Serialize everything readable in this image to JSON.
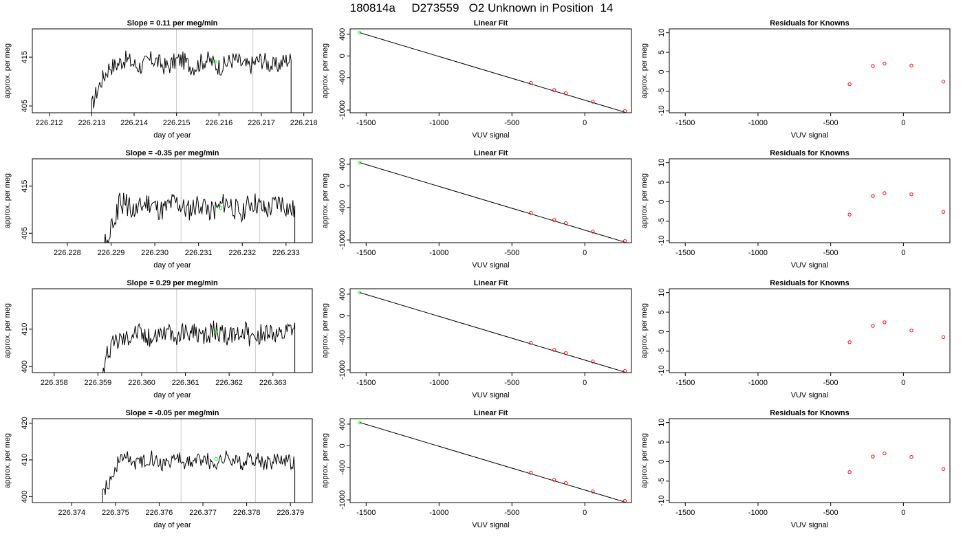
{
  "figure_title": "180814a     D273559   O2 Unknown in Position  14",
  "colors": {
    "trace": "#000000",
    "known_point": "#ff0000",
    "unknown_point": "#00ff00",
    "window_line": "#c8c8c8",
    "frame": "#000000"
  },
  "chart_data": [
    {
      "type": "line",
      "panel": "time-series-1",
      "title": "Slope =  0.11  per meg/min",
      "xlabel": "day of year",
      "ylabel": "approx. per meg",
      "xlim": [
        226.2116,
        226.2182
      ],
      "ylim": [
        403.6,
        420.8
      ],
      "xticks": [
        "226.212",
        "226.213",
        "226.214",
        "226.215",
        "226.216",
        "226.217",
        "226.218"
      ],
      "yticks": [
        "405",
        "415"
      ],
      "window_lines": [
        226.215,
        226.2168
      ],
      "series_start": 226.213,
      "series_end": 226.2177,
      "series_mean": 413.8,
      "series_amplitude": 1.9,
      "unknown_point": {
        "x": 226.2159,
        "y": 414.1
      }
    },
    {
      "type": "scatter",
      "panel": "linear-fit-1",
      "title": "Linear Fit",
      "xlabel": "VUV signal",
      "ylabel": "approx. per meg",
      "xlim": [
        -1610,
        320
      ],
      "ylim": [
        -1050,
        500
      ],
      "xticks": [
        -1500,
        -1000,
        -500,
        0
      ],
      "yticks": [
        400,
        0,
        -400,
        -1000
      ],
      "fit_line": {
        "x": [
          -1545,
          275
        ],
        "y": [
          430,
          -1040
        ]
      },
      "knowns": [
        {
          "x": -370,
          "y": -500
        },
        {
          "x": -210,
          "y": -630
        },
        {
          "x": -130,
          "y": -690
        },
        {
          "x": 55,
          "y": -845
        },
        {
          "x": 275,
          "y": -1020
        }
      ],
      "unknown": {
        "x": -1545,
        "y": 430
      }
    },
    {
      "type": "scatter",
      "panel": "residuals-1",
      "title": "Residuals for Knowns",
      "xlabel": "VUV signal",
      "ylabel": "approx. per meg",
      "xlim": [
        -1610,
        320
      ],
      "ylim": [
        -10.5,
        11
      ],
      "xticks": [
        -1500,
        -1000,
        -500,
        0
      ],
      "yticks": [
        10,
        5,
        0,
        -5,
        -10
      ],
      "points": [
        {
          "x": -370,
          "y": -3.2
        },
        {
          "x": -210,
          "y": 1.5
        },
        {
          "x": -130,
          "y": 2.1
        },
        {
          "x": 55,
          "y": 1.6
        },
        {
          "x": 275,
          "y": -2.5
        }
      ]
    },
    {
      "type": "line",
      "panel": "time-series-2",
      "title": "Slope =  -0.35  per meg/min",
      "xlabel": "day of year",
      "ylabel": "approx. per meg",
      "xlim": [
        226.2272,
        226.2336
      ],
      "ylim": [
        403,
        420.8
      ],
      "xticks": [
        "226.228",
        "226.229",
        "226.230",
        "226.231",
        "226.232",
        "226.233"
      ],
      "yticks": [
        "405",
        "415"
      ],
      "window_lines": [
        226.2306,
        226.2324
      ],
      "series_start": 226.2288,
      "series_end": 226.2332,
      "series_mean": 410.6,
      "series_amplitude": 2.4,
      "unknown_point": {
        "x": 226.2315,
        "y": 410.4
      }
    },
    {
      "type": "scatter",
      "panel": "linear-fit-2",
      "title": "Linear Fit",
      "xlabel": "VUV signal",
      "ylabel": "approx. per meg",
      "xlim": [
        -1610,
        320
      ],
      "ylim": [
        -1050,
        500
      ],
      "xticks": [
        -1500,
        -1000,
        -500,
        0
      ],
      "yticks": [
        400,
        0,
        -400,
        -1000
      ],
      "fit_line": {
        "x": [
          -1545,
          275
        ],
        "y": [
          430,
          -1040
        ]
      },
      "knowns": [
        {
          "x": -370,
          "y": -500
        },
        {
          "x": -210,
          "y": -630
        },
        {
          "x": -130,
          "y": -690
        },
        {
          "x": 55,
          "y": -845
        },
        {
          "x": 275,
          "y": -1020
        }
      ],
      "unknown": {
        "x": -1545,
        "y": 430
      }
    },
    {
      "type": "scatter",
      "panel": "residuals-2",
      "title": "Residuals for Knowns",
      "xlabel": "VUV signal",
      "ylabel": "approx. per meg",
      "xlim": [
        -1610,
        320
      ],
      "ylim": [
        -10.5,
        11
      ],
      "xticks": [
        -1500,
        -1000,
        -500,
        0
      ],
      "yticks": [
        10,
        5,
        0,
        -5,
        -10
      ],
      "points": [
        {
          "x": -370,
          "y": -3.3
        },
        {
          "x": -210,
          "y": 1.5
        },
        {
          "x": -130,
          "y": 2.2
        },
        {
          "x": 55,
          "y": 1.9
        },
        {
          "x": 275,
          "y": -2.6
        }
      ]
    },
    {
      "type": "line",
      "panel": "time-series-3",
      "title": "Slope =  0.29  per meg/min",
      "xlabel": "day of year",
      "ylabel": "approx. per meg",
      "xlim": [
        226.3575,
        226.3639
      ],
      "ylim": [
        398.4,
        420.8
      ],
      "xticks": [
        "226.358",
        "226.359",
        "226.360",
        "226.361",
        "226.362",
        "226.363"
      ],
      "yticks": [
        "400",
        "410"
      ],
      "window_lines": [
        226.3608,
        226.3626
      ],
      "series_start": 226.3591,
      "series_end": 226.3635,
      "series_mean": 408.7,
      "series_amplitude": 2.8,
      "unknown_point": {
        "x": 226.3617,
        "y": 409.2
      }
    },
    {
      "type": "scatter",
      "panel": "linear-fit-3",
      "title": "Linear Fit",
      "xlabel": "VUV signal",
      "ylabel": "approx. per meg",
      "xlim": [
        -1610,
        320
      ],
      "ylim": [
        -1050,
        500
      ],
      "xticks": [
        -1500,
        -1000,
        -500,
        0
      ],
      "yticks": [
        400,
        0,
        -400,
        -1000
      ],
      "fit_line": {
        "x": [
          -1545,
          275
        ],
        "y": [
          430,
          -1040
        ]
      },
      "knowns": [
        {
          "x": -370,
          "y": -500
        },
        {
          "x": -210,
          "y": -630
        },
        {
          "x": -130,
          "y": -690
        },
        {
          "x": 55,
          "y": -845
        },
        {
          "x": 275,
          "y": -1020
        }
      ],
      "unknown": {
        "x": -1545,
        "y": 430
      }
    },
    {
      "type": "scatter",
      "panel": "residuals-3",
      "title": "Residuals for Knowns",
      "xlabel": "VUV signal",
      "ylabel": "approx. per meg",
      "xlim": [
        -1610,
        320
      ],
      "ylim": [
        -10.5,
        11
      ],
      "xticks": [
        -1500,
        -1000,
        -500,
        0
      ],
      "yticks": [
        10,
        5,
        0,
        -5,
        -10
      ],
      "points": [
        {
          "x": -370,
          "y": -2.7
        },
        {
          "x": -210,
          "y": 1.5
        },
        {
          "x": -130,
          "y": 2.4
        },
        {
          "x": 55,
          "y": 0.3
        },
        {
          "x": 275,
          "y": -1.4
        }
      ]
    },
    {
      "type": "line",
      "panel": "time-series-4",
      "title": "Slope =  -0.05  per meg/min",
      "xlabel": "day of year",
      "ylabel": "approx. per meg",
      "xlim": [
        226.3731,
        226.3795
      ],
      "ylim": [
        398.4,
        421.2
      ],
      "xticks": [
        "226.374",
        "226.375",
        "226.376",
        "226.377",
        "226.378",
        "226.379"
      ],
      "yticks": [
        "400",
        "410",
        "420"
      ],
      "window_lines": [
        226.3765,
        226.3782
      ],
      "series_start": 226.3747,
      "series_end": 226.3791,
      "series_mean": 409.8,
      "series_amplitude": 2.1,
      "unknown_point": {
        "x": 226.3773,
        "y": 410.3
      }
    },
    {
      "type": "scatter",
      "panel": "linear-fit-4",
      "title": "Linear Fit",
      "xlabel": "VUV signal",
      "ylabel": "approx. per meg",
      "xlim": [
        -1610,
        320
      ],
      "ylim": [
        -1050,
        500
      ],
      "xticks": [
        -1500,
        -1000,
        -500,
        0
      ],
      "yticks": [
        400,
        0,
        -400,
        -1000
      ],
      "fit_line": {
        "x": [
          -1545,
          275
        ],
        "y": [
          430,
          -1040
        ]
      },
      "knowns": [
        {
          "x": -370,
          "y": -500
        },
        {
          "x": -210,
          "y": -630
        },
        {
          "x": -130,
          "y": -690
        },
        {
          "x": 55,
          "y": -845
        },
        {
          "x": 275,
          "y": -1020
        }
      ],
      "unknown": {
        "x": -1545,
        "y": 430
      }
    },
    {
      "type": "scatter",
      "panel": "residuals-4",
      "title": "Residuals for Knowns",
      "xlabel": "VUV signal",
      "ylabel": "approx. per meg",
      "xlim": [
        -1610,
        320
      ],
      "ylim": [
        -10.5,
        11
      ],
      "xticks": [
        -1500,
        -1000,
        -500,
        0
      ],
      "yticks": [
        10,
        5,
        0,
        -5,
        -10
      ],
      "points": [
        {
          "x": -370,
          "y": -2.7
        },
        {
          "x": -210,
          "y": 1.3
        },
        {
          "x": -130,
          "y": 2.1
        },
        {
          "x": 55,
          "y": 1.2
        },
        {
          "x": 275,
          "y": -1.9
        }
      ]
    }
  ]
}
